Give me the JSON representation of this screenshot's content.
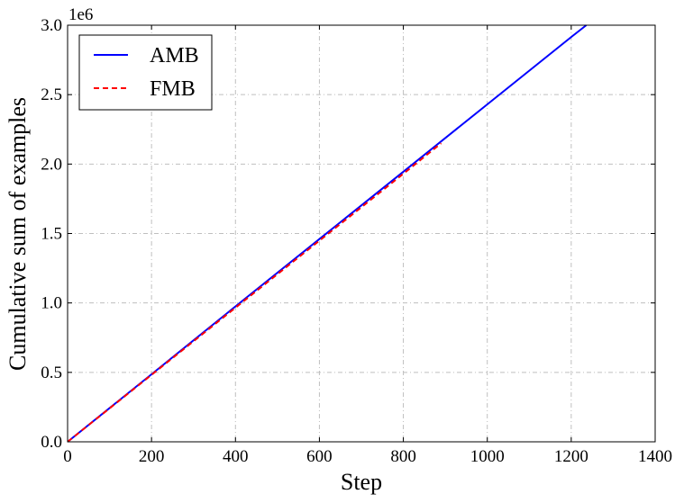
{
  "chart_data": {
    "type": "line",
    "title": "",
    "xlabel": "Step",
    "ylabel": "Cumulative sum of examples",
    "xlim": [
      0,
      1400
    ],
    "ylim": [
      0,
      3000000
    ],
    "y_offset_label": "1e6",
    "x_ticks": [
      0,
      200,
      400,
      600,
      800,
      1000,
      1200,
      1400
    ],
    "x_tick_labels": [
      "0",
      "200",
      "400",
      "600",
      "800",
      "1000",
      "1200",
      "1400"
    ],
    "y_ticks": [
      0,
      500000,
      1000000,
      1500000,
      2000000,
      2500000,
      3000000
    ],
    "y_tick_labels": [
      "0.0",
      "0.5",
      "1.0",
      "1.5",
      "2.0",
      "2.5",
      "3.0"
    ],
    "grid": true,
    "legend_position": "top-left",
    "series": [
      {
        "name": "AMB",
        "color": "#0000ff",
        "style": "solid",
        "x": [
          0,
          200,
          400,
          600,
          800,
          1000,
          1200,
          1236
        ],
        "y": [
          0,
          486000,
          975000,
          1460000,
          1945000,
          2430000,
          2915000,
          3000000
        ]
      },
      {
        "name": "FMB",
        "color": "#ff0000",
        "style": "dashed",
        "x": [
          0,
          200,
          400,
          600,
          800,
          890
        ],
        "y": [
          0,
          482000,
          966000,
          1448000,
          1930000,
          2150000
        ]
      }
    ]
  }
}
